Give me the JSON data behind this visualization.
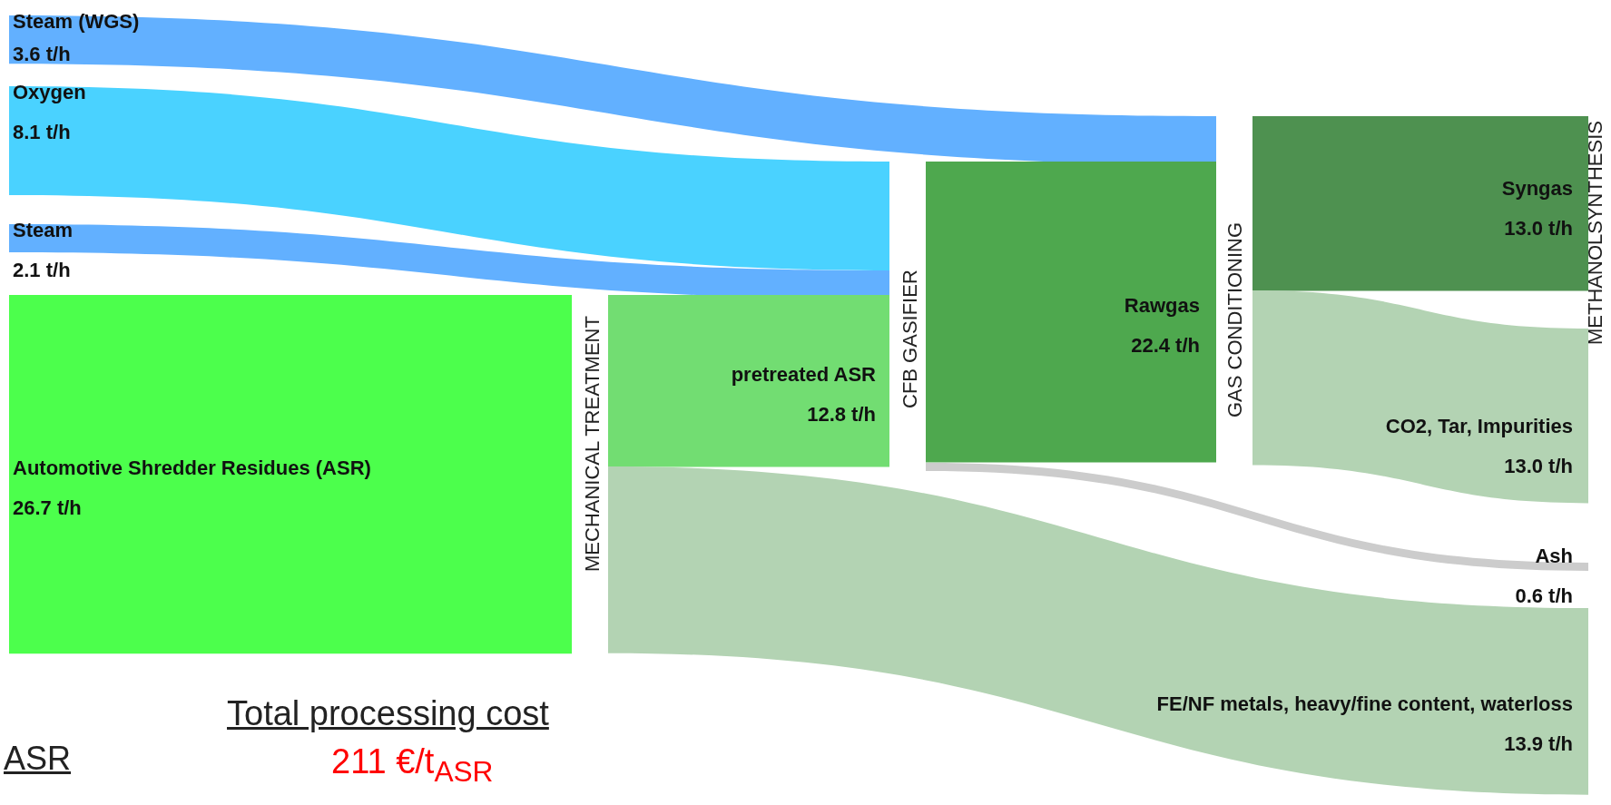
{
  "chart_data": {
    "type": "other",
    "categories": [
      "Steam (WGS)",
      "Oxygen",
      "Steam",
      "Automotive Shredder Residues (ASR)",
      "pretreated ASR",
      "Rawgas",
      "Syngas",
      "CO2, Tar, Impurities",
      "Ash",
      "FE/NF metals, heavy/fine content, waterloss"
    ],
    "values": [
      3.6,
      8.1,
      2.1,
      26.7,
      12.8,
      22.4,
      13.0,
      13.0,
      0.6,
      13.9
    ],
    "value_labels": [
      "3.6 t/h",
      "8.1 t/h",
      "2.1 t/h",
      "26.7 t/h",
      "12.8 t/h",
      "22.4 t/h",
      "13.0 t/h",
      "13.0 t/h",
      "0.6 t/h",
      "13.9 t/h"
    ],
    "colors": [
      "#62b0ff",
      "#4ad2ff",
      "#62b0ff",
      "#4cff4c",
      "#72dd72",
      "#4ea84e",
      "#4e9150",
      "#b3d3b3",
      "#cccccc",
      "#b3d3b3"
    ],
    "annotations": [
      "MECHANICAL TREATMENT",
      "CFB GASIFIER",
      "GAS CONDITIONING",
      "METHANOLSYNTHESIS",
      "ASR",
      "Total processing cost",
      "211 €/t$_{ASR}$"
    ]
  }
}
